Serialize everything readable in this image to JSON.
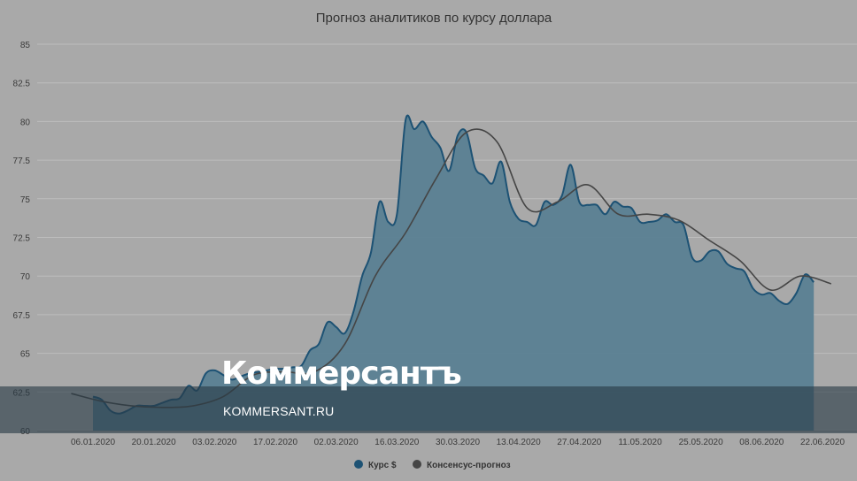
{
  "chart_data": {
    "type": "area",
    "title": "Прогноз аналитиков по курсу доллара",
    "xlabel": "",
    "ylabel": "",
    "ylim": [
      60,
      85
    ],
    "yticks": [
      60,
      62.5,
      65,
      67.5,
      70,
      72.5,
      75,
      77.5,
      80,
      82.5,
      85
    ],
    "xticks": [
      "06.01.2020",
      "20.01.2020",
      "03.02.2020",
      "17.02.2020",
      "02.03.2020",
      "16.03.2020",
      "30.03.2020",
      "13.04.2020",
      "27.04.2020",
      "11.05.2020",
      "25.05.2020",
      "08.06.2020",
      "22.06.2020"
    ],
    "grid": true,
    "legend": "bottom-center",
    "colors": {
      "rate": "#1d5274",
      "consensus": "#454545",
      "area": "#5a7f92",
      "background": "#a9a9a9"
    },
    "series": [
      {
        "name": "Курс $",
        "type": "area",
        "x": [
          "2020-01-06",
          "2020-01-08",
          "2020-01-10",
          "2020-01-12",
          "2020-01-14",
          "2020-01-16",
          "2020-01-18",
          "2020-01-20",
          "2020-01-22",
          "2020-01-24",
          "2020-01-26",
          "2020-01-28",
          "2020-01-30",
          "2020-02-01",
          "2020-02-03",
          "2020-02-05",
          "2020-02-07",
          "2020-02-09",
          "2020-02-11",
          "2020-02-13",
          "2020-02-15",
          "2020-02-17",
          "2020-02-19",
          "2020-02-21",
          "2020-02-23",
          "2020-02-25",
          "2020-02-27",
          "2020-02-29",
          "2020-03-02",
          "2020-03-04",
          "2020-03-06",
          "2020-03-08",
          "2020-03-10",
          "2020-03-12",
          "2020-03-14",
          "2020-03-16",
          "2020-03-18",
          "2020-03-20",
          "2020-03-22",
          "2020-03-24",
          "2020-03-26",
          "2020-03-28",
          "2020-03-30",
          "2020-04-01",
          "2020-04-03",
          "2020-04-05",
          "2020-04-07",
          "2020-04-09",
          "2020-04-11",
          "2020-04-13",
          "2020-04-15",
          "2020-04-17",
          "2020-04-19",
          "2020-04-21",
          "2020-04-23",
          "2020-04-25",
          "2020-04-27",
          "2020-04-29",
          "2020-05-01",
          "2020-05-03",
          "2020-05-05",
          "2020-05-07",
          "2020-05-09",
          "2020-05-11",
          "2020-05-13",
          "2020-05-15",
          "2020-05-17",
          "2020-05-19",
          "2020-05-21",
          "2020-05-23",
          "2020-05-25",
          "2020-05-27",
          "2020-05-29",
          "2020-05-31",
          "2020-06-02",
          "2020-06-04",
          "2020-06-06",
          "2020-06-08",
          "2020-06-10",
          "2020-06-12",
          "2020-06-14",
          "2020-06-16",
          "2020-06-18",
          "2020-06-20"
        ],
        "values": [
          62.2,
          62.0,
          61.3,
          61.1,
          61.3,
          61.6,
          61.6,
          61.6,
          61.8,
          62.0,
          62.1,
          62.9,
          62.6,
          63.7,
          63.9,
          63.6,
          63.3,
          63.5,
          63.7,
          63.8,
          63.9,
          64.0,
          64.0,
          64.1,
          64.2,
          65.2,
          65.6,
          67.0,
          66.7,
          66.3,
          67.7,
          70.0,
          71.5,
          74.8,
          73.5,
          74.0,
          80.1,
          79.5,
          80.0,
          79.0,
          78.3,
          76.8,
          79.1,
          79.3,
          77.0,
          76.5,
          76.0,
          77.4,
          74.8,
          73.7,
          73.5,
          73.3,
          74.8,
          74.6,
          75.2,
          77.2,
          74.8,
          74.6,
          74.6,
          74.0,
          74.8,
          74.5,
          74.4,
          73.5,
          73.5,
          73.6,
          74.0,
          73.5,
          73.3,
          71.2,
          71.0,
          71.6,
          71.6,
          70.8,
          70.5,
          70.3,
          69.2,
          68.8,
          68.9,
          68.4,
          68.2,
          68.9,
          70.1,
          69.6
        ]
      },
      {
        "name": "Консенсус-прогноз",
        "type": "line",
        "x": [
          "2020-01-01",
          "2020-01-08",
          "2020-01-15",
          "2020-01-22",
          "2020-01-29",
          "2020-02-05",
          "2020-02-12",
          "2020-02-19",
          "2020-02-26",
          "2020-03-04",
          "2020-03-11",
          "2020-03-18",
          "2020-03-25",
          "2020-04-01",
          "2020-04-08",
          "2020-04-15",
          "2020-04-22",
          "2020-04-29",
          "2020-05-06",
          "2020-05-13",
          "2020-05-20",
          "2020-05-27",
          "2020-06-03",
          "2020-06-10",
          "2020-06-17",
          "2020-06-24"
        ],
        "values": [
          62.4,
          61.9,
          61.6,
          61.5,
          61.6,
          62.2,
          63.6,
          63.8,
          63.8,
          65.6,
          70.0,
          72.8,
          76.3,
          79.3,
          78.7,
          74.4,
          74.8,
          75.9,
          74.0,
          74.0,
          73.6,
          72.3,
          71.0,
          69.1,
          70.0,
          69.5
        ]
      }
    ]
  },
  "watermark": {
    "logo": "Коммерсантъ",
    "url": "KOMMERSANT.RU"
  }
}
